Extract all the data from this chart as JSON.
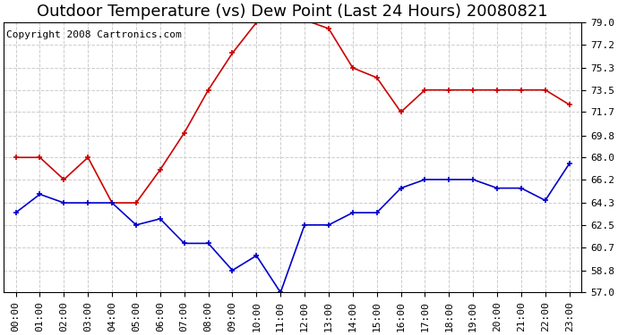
{
  "title": "Outdoor Temperature (vs) Dew Point (Last 24 Hours) 20080821",
  "copyright": "Copyright 2008 Cartronics.com",
  "hours": [
    "00:00",
    "01:00",
    "02:00",
    "03:00",
    "04:00",
    "05:00",
    "06:00",
    "07:00",
    "08:00",
    "09:00",
    "10:00",
    "11:00",
    "12:00",
    "13:00",
    "14:00",
    "15:00",
    "16:00",
    "17:00",
    "18:00",
    "19:00",
    "20:00",
    "21:00",
    "22:00",
    "23:00"
  ],
  "temp": [
    68.0,
    68.0,
    66.2,
    68.0,
    64.3,
    64.3,
    67.0,
    70.0,
    73.5,
    76.5,
    79.0,
    79.2,
    79.2,
    78.5,
    75.3,
    74.5,
    71.7,
    73.5,
    73.5,
    73.5,
    73.5,
    73.5,
    73.5,
    72.3
  ],
  "dew": [
    63.5,
    65.0,
    64.3,
    64.3,
    64.3,
    62.5,
    63.0,
    61.0,
    61.0,
    58.8,
    60.0,
    57.0,
    62.5,
    62.5,
    63.5,
    63.5,
    65.5,
    66.2,
    66.2,
    66.2,
    65.5,
    65.5,
    64.5,
    67.5
  ],
  "temp_color": "#cc0000",
  "dew_color": "#0000cc",
  "bg_color": "#ffffff",
  "grid_color": "#cccccc",
  "ylim": [
    57.0,
    79.0
  ],
  "yticks": [
    57.0,
    58.8,
    60.7,
    62.5,
    64.3,
    66.2,
    68.0,
    69.8,
    71.7,
    73.5,
    75.3,
    77.2,
    79.0
  ],
  "title_fontsize": 13,
  "copyright_fontsize": 8,
  "tick_fontsize": 8
}
